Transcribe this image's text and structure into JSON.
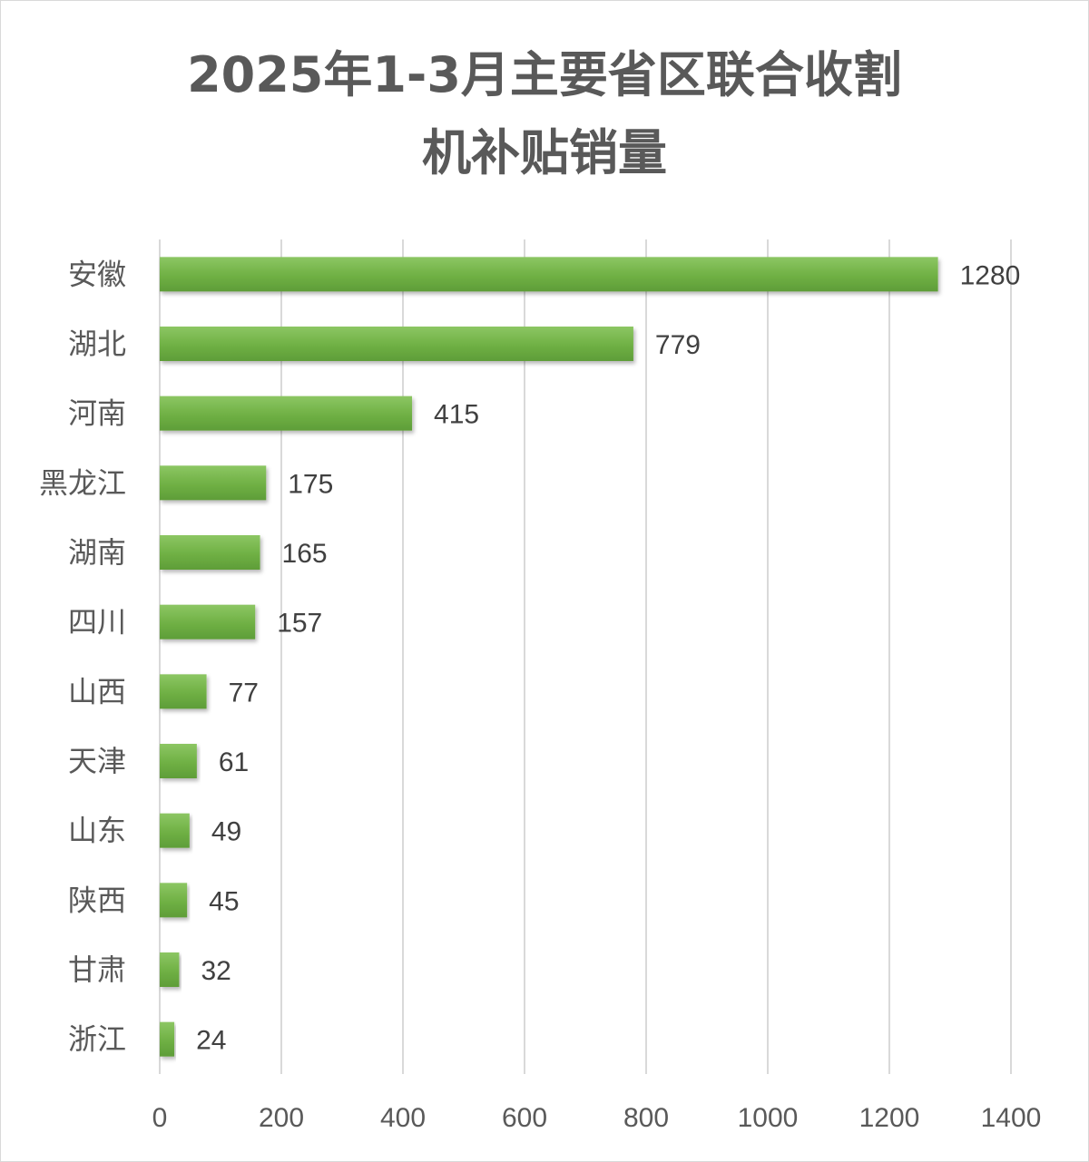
{
  "chart_data": {
    "type": "bar",
    "orientation": "horizontal",
    "title_lines": [
      "2025年1-3月主要省区联合收割",
      "机补贴销量"
    ],
    "categories": [
      "安徽",
      "湖北",
      "河南",
      "黑龙江",
      "湖南",
      "四川",
      "山西",
      "天津",
      "山东",
      "陕西",
      "甘肃",
      "浙江"
    ],
    "values": [
      1280,
      779,
      415,
      175,
      165,
      157,
      77,
      61,
      49,
      45,
      32,
      24
    ],
    "xlim": [
      0,
      1400
    ],
    "xticks": [
      "0",
      "200",
      "400",
      "600",
      "800",
      "1000",
      "1200",
      "1400"
    ],
    "grid": "vertical",
    "bar_color": "#70ad47",
    "data_labels": true,
    "legend": "none"
  }
}
